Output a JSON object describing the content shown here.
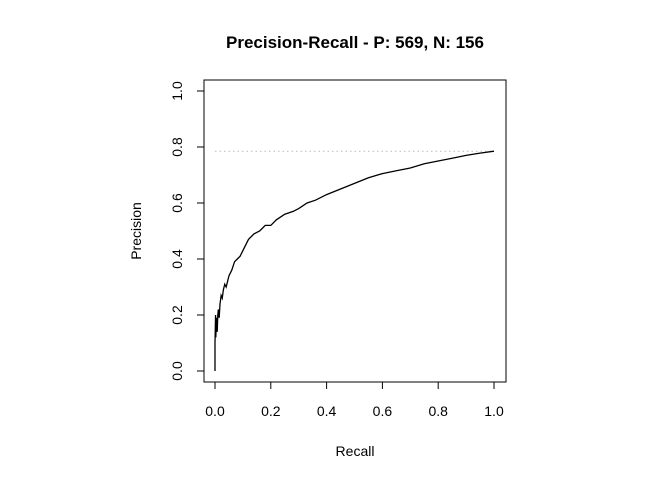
{
  "chart_data": {
    "type": "line",
    "title": "Precision-Recall - P: 569, N: 156",
    "xlabel": "Recall",
    "ylabel": "Precision",
    "xlim": [
      0,
      1
    ],
    "ylim": [
      0,
      1
    ],
    "x_ticks": [
      "0.0",
      "0.2",
      "0.4",
      "0.6",
      "0.8",
      "1.0"
    ],
    "y_ticks": [
      "0.0",
      "0.2",
      "0.4",
      "0.6",
      "0.8",
      "1.0"
    ],
    "grid": false,
    "baseline": {
      "y": 0.785,
      "style": "dotted",
      "color": "#bbbbbb"
    },
    "line_color": "#000000",
    "series": [
      {
        "x": [
          0.0,
          0.0,
          0.002,
          0.003,
          0.004,
          0.006,
          0.008,
          0.01,
          0.012,
          0.015,
          0.018,
          0.022,
          0.026,
          0.03,
          0.035,
          0.04,
          0.05,
          0.06,
          0.07,
          0.08,
          0.09,
          0.1,
          0.12,
          0.14,
          0.16,
          0.18,
          0.2,
          0.22,
          0.25,
          0.28,
          0.3,
          0.33,
          0.36,
          0.4,
          0.45,
          0.5,
          0.55,
          0.6,
          0.65,
          0.7,
          0.75,
          0.8,
          0.85,
          0.9,
          0.95,
          1.0
        ],
        "y": [
          0.0,
          0.1,
          0.2,
          0.12,
          0.16,
          0.19,
          0.14,
          0.2,
          0.22,
          0.19,
          0.24,
          0.27,
          0.26,
          0.29,
          0.31,
          0.3,
          0.34,
          0.36,
          0.39,
          0.4,
          0.41,
          0.43,
          0.47,
          0.49,
          0.5,
          0.52,
          0.52,
          0.54,
          0.56,
          0.57,
          0.58,
          0.6,
          0.61,
          0.63,
          0.65,
          0.67,
          0.69,
          0.705,
          0.715,
          0.725,
          0.74,
          0.75,
          0.76,
          0.77,
          0.778,
          0.785
        ]
      }
    ]
  }
}
